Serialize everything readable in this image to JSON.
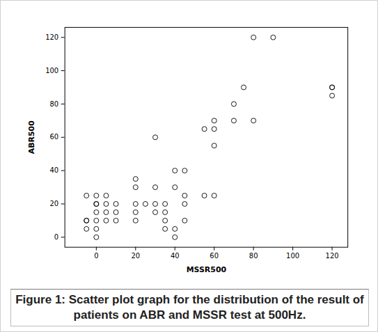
{
  "chart_data": {
    "type": "scatter",
    "caption": "Figure 1: Scatter plot graph for the distribution of the result of patients on ABR and MSSR test at 500Hz.",
    "x_label": "MSSR500",
    "y_label": "ABR500",
    "x": [
      -5,
      -5,
      -5,
      -5,
      0,
      0,
      0,
      0,
      0,
      0,
      0,
      5,
      5,
      5,
      5,
      10,
      10,
      10,
      20,
      20,
      20,
      20,
      20,
      25,
      30,
      30,
      30,
      30,
      35,
      35,
      35,
      35,
      40,
      40,
      40,
      40,
      45,
      45,
      45,
      45,
      55,
      55,
      60,
      60,
      60,
      60,
      70,
      70,
      75,
      80,
      80,
      90,
      120,
      120,
      120
    ],
    "y": [
      25,
      10,
      10,
      5,
      25,
      20,
      20,
      15,
      10,
      5,
      0,
      25,
      20,
      15,
      10,
      20,
      15,
      10,
      35,
      30,
      20,
      15,
      10,
      20,
      60,
      30,
      20,
      15,
      20,
      15,
      10,
      5,
      40,
      30,
      5,
      0,
      40,
      25,
      20,
      10,
      65,
      25,
      70,
      65,
      55,
      25,
      80,
      70,
      90,
      120,
      70,
      120,
      90,
      85,
      90
    ],
    "xlim": [
      -16,
      128
    ],
    "ylim": [
      -6,
      126
    ],
    "xticks": [
      0,
      20,
      40,
      60,
      80,
      100,
      120
    ],
    "yticks": [
      0,
      20,
      40,
      60,
      80,
      100,
      120
    ],
    "marker": "open circle",
    "color": "#000000",
    "grid": false
  }
}
